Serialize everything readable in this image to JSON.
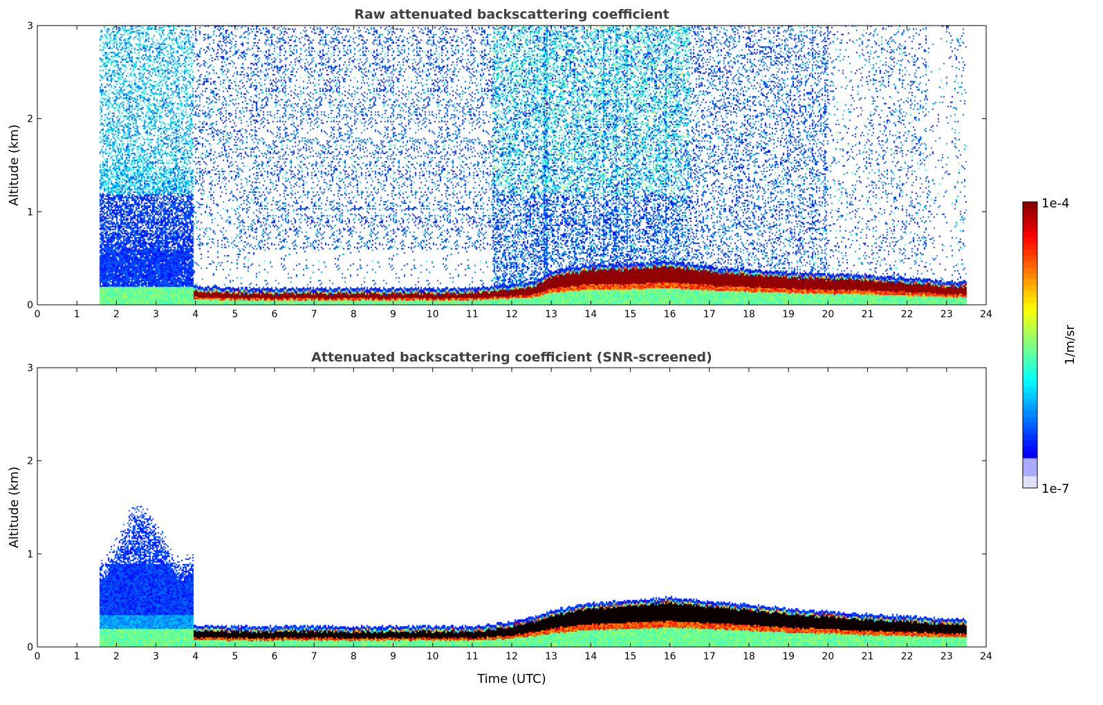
{
  "chart_data": [
    {
      "type": "heatmap",
      "title": "Raw attenuated backscattering coefficient",
      "xlabel": "",
      "ylabel": "Altitude (km)",
      "xlim": [
        0,
        24
      ],
      "ylim": [
        0,
        3
      ],
      "xticks": [
        0,
        1,
        2,
        3,
        4,
        5,
        6,
        7,
        8,
        9,
        10,
        11,
        12,
        13,
        14,
        15,
        16,
        17,
        18,
        19,
        20,
        21,
        22,
        23,
        24
      ],
      "yticks": [
        0,
        1,
        2,
        3
      ],
      "screened": false,
      "data_start_hour": 1.58,
      "data_end_hour": 23.5,
      "boundary_layer_top_km": {
        "hours": [
          4,
          5,
          6,
          7,
          8,
          9,
          10,
          11,
          12,
          12.6,
          13,
          14,
          15,
          16,
          17,
          18,
          19,
          20,
          21,
          22,
          23,
          23.5
        ],
        "values": [
          0.15,
          0.13,
          0.13,
          0.13,
          0.13,
          0.13,
          0.13,
          0.13,
          0.17,
          0.2,
          0.3,
          0.38,
          0.38,
          0.42,
          0.36,
          0.33,
          0.3,
          0.28,
          0.27,
          0.24,
          0.2,
          0.2
        ]
      }
    },
    {
      "type": "heatmap",
      "title": "Attenuated backscattering coefficient (SNR-screened)",
      "xlabel": "Time (UTC)",
      "ylabel": "Altitude (km)",
      "xlim": [
        0,
        24
      ],
      "ylim": [
        0,
        3
      ],
      "xticks": [
        0,
        1,
        2,
        3,
        4,
        5,
        6,
        7,
        8,
        9,
        10,
        11,
        12,
        13,
        14,
        15,
        16,
        17,
        18,
        19,
        20,
        21,
        22,
        23,
        24
      ],
      "yticks": [
        0,
        1,
        2,
        3
      ],
      "screened": true,
      "data_start_hour": 1.58,
      "data_end_hour": 23.5,
      "boundary_layer_top_km": {
        "hours": [
          4,
          5,
          6,
          7,
          8,
          9,
          10,
          11,
          12,
          12.6,
          13,
          14,
          15,
          16,
          17,
          18,
          19,
          20,
          21,
          22,
          23,
          23.5
        ],
        "values": [
          0.18,
          0.17,
          0.17,
          0.17,
          0.17,
          0.17,
          0.17,
          0.17,
          0.22,
          0.28,
          0.34,
          0.42,
          0.44,
          0.48,
          0.44,
          0.4,
          0.36,
          0.33,
          0.3,
          0.28,
          0.25,
          0.25
        ]
      }
    }
  ],
  "colorbar": {
    "label": "1/m/sr",
    "max_label": "1e-4",
    "min_label": "1e-7",
    "range_log10": [
      -7,
      -4
    ],
    "colormap": "jet"
  }
}
